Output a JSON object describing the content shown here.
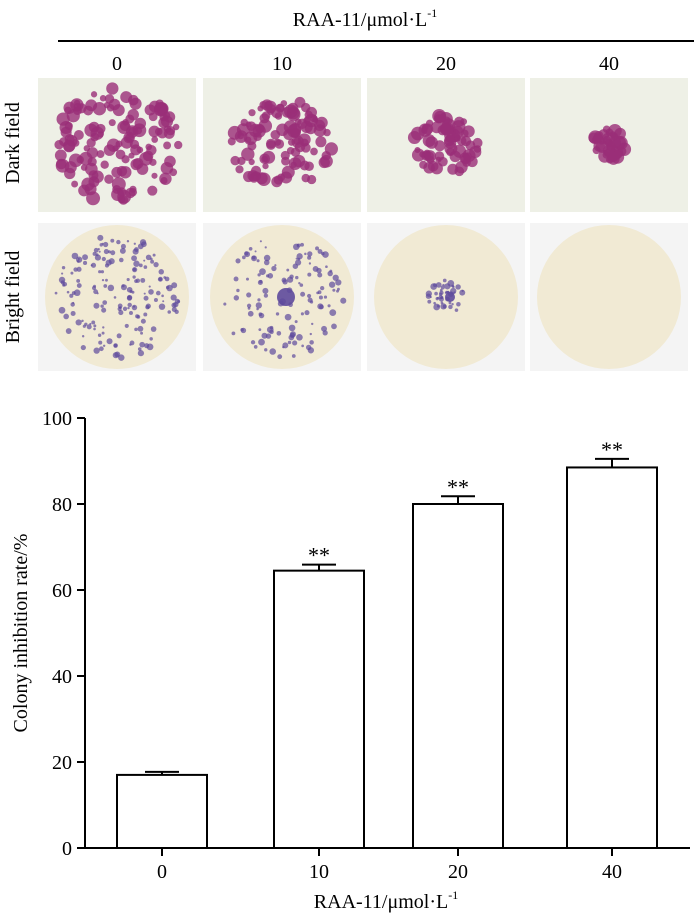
{
  "header": {
    "title_main": "RAA-11/μmol·L",
    "title_sup": "-1",
    "concentrations": [
      "0",
      "10",
      "20",
      "40"
    ]
  },
  "row_labels": {
    "dark": "Dark field",
    "bright": "Bright field"
  },
  "images": {
    "dark_colony_color": "#9a2e78",
    "bright_colony_color": "#5e4a9c",
    "dark_bg": "#eef0e6",
    "bright_bg": "#f1ead4"
  },
  "chart_data": {
    "type": "bar",
    "categories": [
      "0",
      "10",
      "20",
      "40"
    ],
    "values": [
      17,
      64.5,
      80,
      88.5
    ],
    "errors": [
      0.7,
      1.4,
      1.8,
      2.0
    ],
    "annotations": [
      "",
      "**",
      "**",
      "**"
    ],
    "xlabel": "RAA-11/μmol·L",
    "xlabel_sup": "-1",
    "ylabel": "Colony inhibition rate/%",
    "ylim": [
      0,
      100
    ],
    "yticks": [
      0,
      20,
      40,
      60,
      80,
      100
    ],
    "grid": false,
    "bar_fill": "#ffffff",
    "bar_stroke": "#000000"
  }
}
